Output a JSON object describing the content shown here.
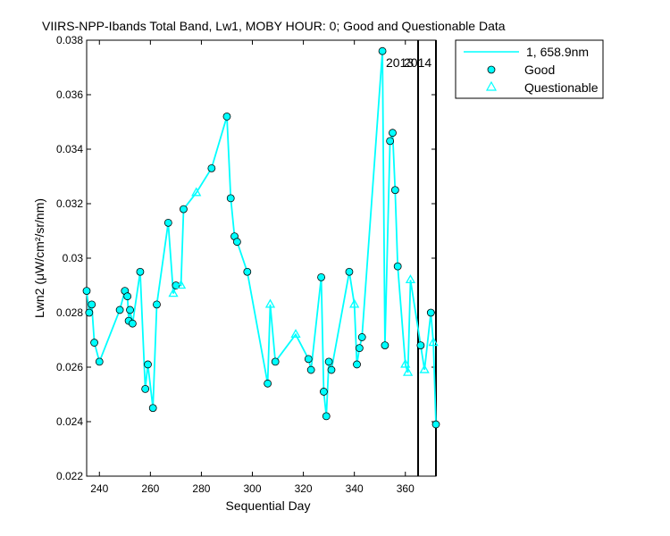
{
  "chart_data": {
    "type": "line",
    "title": "VIIRS-NPP-Ibands Total Band, Lw1, MOBY HOUR: 0;  Good and Questionable Data",
    "xlabel": "Sequential Day",
    "ylabel": "Lwn2 (μW/cm²/sr/nm)",
    "xlim": [
      235,
      372
    ],
    "ylim": [
      0.022,
      0.038
    ],
    "x_ticks": [
      "240",
      "260",
      "280",
      "300",
      "320",
      "340",
      "360"
    ],
    "y_ticks": [
      "0.022",
      "0.024",
      "0.026",
      "0.028",
      "0.03",
      "0.032",
      "0.034",
      "0.036",
      "0.038"
    ],
    "legend_position": "top-right",
    "series_color": "#00ffff",
    "marker_edge_color": "#000000",
    "legend": {
      "line_label": "1, 658.9nm",
      "good_label": "Good",
      "questionable_label": "Questionable"
    },
    "year_markers": [
      {
        "x": 365,
        "label": "2013"
      },
      {
        "x": 372,
        "label": "2014"
      }
    ],
    "points": [
      {
        "x": 235,
        "y": 0.0288,
        "q": "good"
      },
      {
        "x": 236,
        "y": 0.028,
        "q": "good"
      },
      {
        "x": 237,
        "y": 0.0283,
        "q": "good"
      },
      {
        "x": 238,
        "y": 0.0269,
        "q": "good"
      },
      {
        "x": 240,
        "y": 0.0262,
        "q": "good"
      },
      {
        "x": 248,
        "y": 0.0281,
        "q": "good"
      },
      {
        "x": 250,
        "y": 0.0288,
        "q": "good"
      },
      {
        "x": 251,
        "y": 0.0286,
        "q": "good"
      },
      {
        "x": 251.5,
        "y": 0.0277,
        "q": "good"
      },
      {
        "x": 252,
        "y": 0.0281,
        "q": "good"
      },
      {
        "x": 253,
        "y": 0.0276,
        "q": "good"
      },
      {
        "x": 256,
        "y": 0.0295,
        "q": "good"
      },
      {
        "x": 258,
        "y": 0.0252,
        "q": "good"
      },
      {
        "x": 259,
        "y": 0.0261,
        "q": "good"
      },
      {
        "x": 261,
        "y": 0.0245,
        "q": "good"
      },
      {
        "x": 262.5,
        "y": 0.0283,
        "q": "good"
      },
      {
        "x": 267,
        "y": 0.0313,
        "q": "good"
      },
      {
        "x": 269,
        "y": 0.0287,
        "q": "questionable"
      },
      {
        "x": 270,
        "y": 0.029,
        "q": "good"
      },
      {
        "x": 272,
        "y": 0.029,
        "q": "questionable"
      },
      {
        "x": 273,
        "y": 0.0318,
        "q": "good"
      },
      {
        "x": 278,
        "y": 0.0324,
        "q": "questionable"
      },
      {
        "x": 284,
        "y": 0.0333,
        "q": "good"
      },
      {
        "x": 290,
        "y": 0.0352,
        "q": "good"
      },
      {
        "x": 291.5,
        "y": 0.0322,
        "q": "good"
      },
      {
        "x": 293,
        "y": 0.0308,
        "q": "good"
      },
      {
        "x": 294,
        "y": 0.0306,
        "q": "good"
      },
      {
        "x": 298,
        "y": 0.0295,
        "q": "good"
      },
      {
        "x": 306,
        "y": 0.0254,
        "q": "good"
      },
      {
        "x": 307,
        "y": 0.0283,
        "q": "questionable"
      },
      {
        "x": 309,
        "y": 0.0262,
        "q": "good"
      },
      {
        "x": 317,
        "y": 0.0272,
        "q": "questionable"
      },
      {
        "x": 322,
        "y": 0.0263,
        "q": "good"
      },
      {
        "x": 323,
        "y": 0.0259,
        "q": "good"
      },
      {
        "x": 327,
        "y": 0.0293,
        "q": "good"
      },
      {
        "x": 328,
        "y": 0.0251,
        "q": "good"
      },
      {
        "x": 329,
        "y": 0.0242,
        "q": "good"
      },
      {
        "x": 330,
        "y": 0.0262,
        "q": "good"
      },
      {
        "x": 331,
        "y": 0.0259,
        "q": "good"
      },
      {
        "x": 338,
        "y": 0.0295,
        "q": "good"
      },
      {
        "x": 340,
        "y": 0.0283,
        "q": "questionable"
      },
      {
        "x": 341,
        "y": 0.0261,
        "q": "good"
      },
      {
        "x": 342,
        "y": 0.0267,
        "q": "good"
      },
      {
        "x": 343,
        "y": 0.0271,
        "q": "good"
      },
      {
        "x": 351,
        "y": 0.0376,
        "q": "good"
      },
      {
        "x": 352,
        "y": 0.0268,
        "q": "good"
      },
      {
        "x": 354,
        "y": 0.0343,
        "q": "good"
      },
      {
        "x": 355,
        "y": 0.0346,
        "q": "good"
      },
      {
        "x": 356,
        "y": 0.0325,
        "q": "good"
      },
      {
        "x": 357,
        "y": 0.0297,
        "q": "good"
      },
      {
        "x": 360,
        "y": 0.0261,
        "q": "questionable"
      },
      {
        "x": 361,
        "y": 0.0258,
        "q": "questionable"
      },
      {
        "x": 362,
        "y": 0.0292,
        "q": "questionable"
      },
      {
        "x": 366,
        "y": 0.0268,
        "q": "good"
      },
      {
        "x": 367.5,
        "y": 0.0259,
        "q": "questionable"
      },
      {
        "x": 370,
        "y": 0.028,
        "q": "good"
      },
      {
        "x": 371,
        "y": 0.0269,
        "q": "questionable"
      },
      {
        "x": 372,
        "y": 0.0239,
        "q": "good"
      }
    ]
  }
}
